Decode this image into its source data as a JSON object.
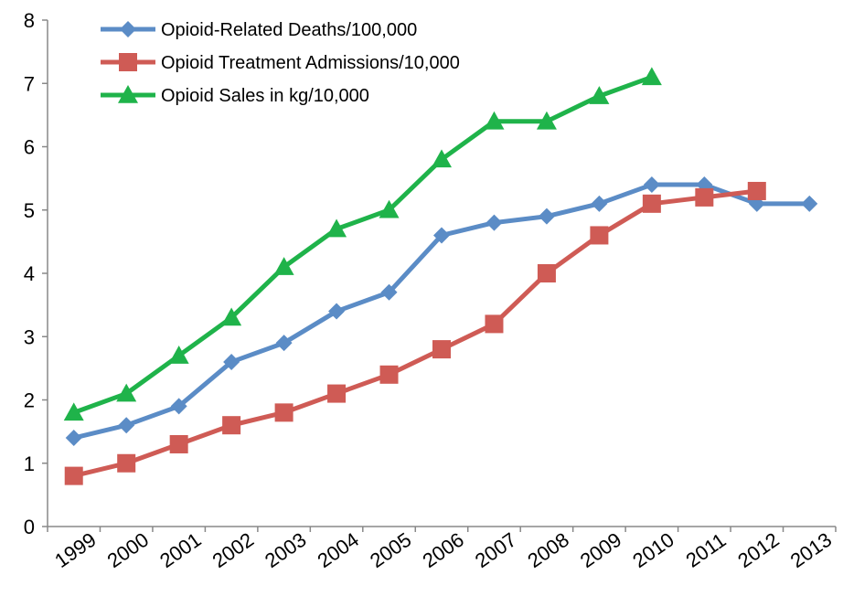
{
  "chart_data": {
    "type": "line",
    "title": "",
    "xlabel": "",
    "ylabel": "",
    "categories": [
      "1999",
      "2000",
      "2001",
      "2002",
      "2003",
      "2004",
      "2005",
      "2006",
      "2007",
      "2008",
      "2009",
      "2010",
      "2011",
      "2012",
      "2013"
    ],
    "ylim": [
      0,
      8
    ],
    "yticks": [
      "0",
      "1",
      "2",
      "3",
      "4",
      "5",
      "6",
      "7",
      "8"
    ],
    "grid": false,
    "legend_position": "top-left",
    "series": [
      {
        "name": "Opioid-Related Deaths/100,000",
        "color": "#5b8cc6",
        "marker": "diamond",
        "values": [
          1.4,
          1.6,
          1.9,
          2.6,
          2.9,
          3.4,
          3.7,
          4.6,
          4.8,
          4.9,
          5.1,
          5.4,
          5.4,
          5.1,
          5.1
        ]
      },
      {
        "name": "Opioid Treatment Admissions/10,000",
        "color": "#cf5b55",
        "marker": "square",
        "values": [
          0.8,
          1.0,
          1.3,
          1.6,
          1.8,
          2.1,
          2.4,
          2.8,
          3.2,
          4.0,
          4.6,
          5.1,
          5.2,
          5.3,
          null
        ]
      },
      {
        "name": "Opioid Sales in kg/10,000",
        "color": "#1fb34a",
        "marker": "triangle",
        "values": [
          1.8,
          2.1,
          2.7,
          3.3,
          4.1,
          4.7,
          5.0,
          5.8,
          6.4,
          6.4,
          6.8,
          7.1,
          null,
          null,
          null
        ]
      }
    ]
  }
}
